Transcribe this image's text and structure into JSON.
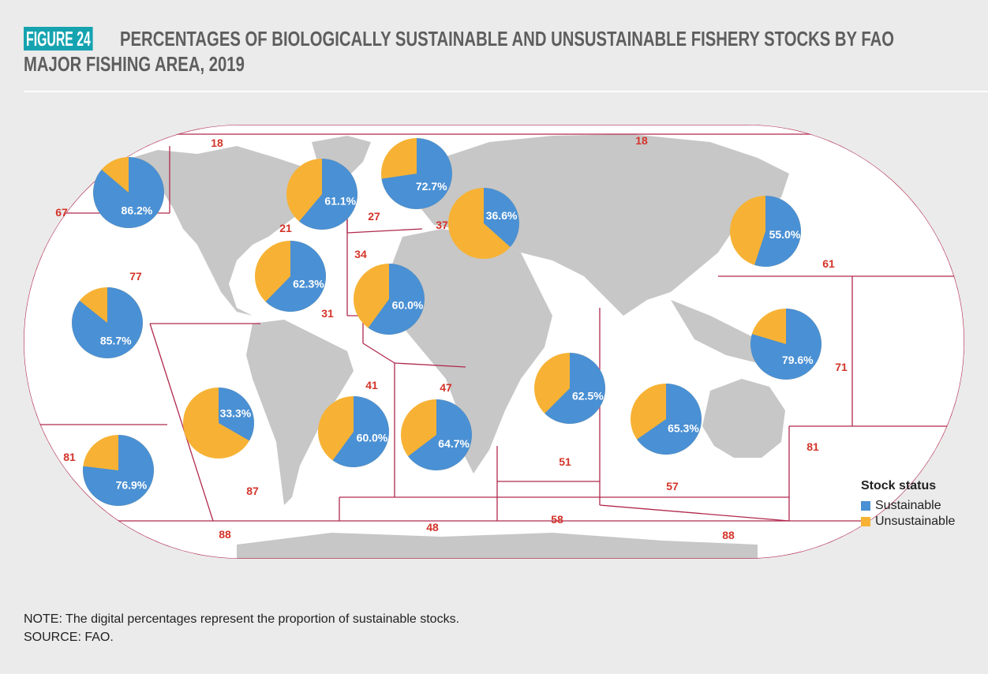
{
  "header": {
    "figure_label": "FIGURE 24",
    "title_line1": "PERCENTAGES OF BIOLOGICALLY SUSTAINABLE AND UNSUSTAINABLE FISHERY STOCKS BY FAO",
    "title_line2": "MAJOR FISHING AREA, 2019"
  },
  "colors": {
    "sustainable": "#4a90d4",
    "unsustainable": "#f7b235",
    "border": "#b0294d",
    "area_label": "#d4342a",
    "land": "#c7c7c7",
    "ocean": "#ffffff",
    "accent": "#15a3b0"
  },
  "area_labels": [
    "18",
    "18",
    "67",
    "21",
    "27",
    "37",
    "34",
    "77",
    "31",
    "61",
    "71",
    "41",
    "47",
    "51",
    "81",
    "87",
    "57",
    "81",
    "88",
    "48",
    "58",
    "88"
  ],
  "pies": [
    {
      "area": "67",
      "sustainable": 86.2,
      "label": "86.2%"
    },
    {
      "area": "21",
      "sustainable": 61.1,
      "label": "61.1%"
    },
    {
      "area": "27",
      "sustainable": 72.7,
      "label": "72.7%"
    },
    {
      "area": "37",
      "sustainable": 36.6,
      "label": "36.6%"
    },
    {
      "area": "61",
      "sustainable": 55.0,
      "label": "55.0%"
    },
    {
      "area": "31",
      "sustainable": 62.3,
      "label": "62.3%"
    },
    {
      "area": "34",
      "sustainable": 60.0,
      "label": "60.0%"
    },
    {
      "area": "77",
      "sustainable": 85.7,
      "label": "85.7%"
    },
    {
      "area": "71",
      "sustainable": 79.6,
      "label": "79.6%"
    },
    {
      "area": "51",
      "sustainable": 62.5,
      "label": "62.5%"
    },
    {
      "area": "57",
      "sustainable": 65.3,
      "label": "65.3%"
    },
    {
      "area": "87",
      "sustainable": 33.3,
      "label": "33.3%"
    },
    {
      "area": "41",
      "sustainable": 60.0,
      "label": "60.0%"
    },
    {
      "area": "47",
      "sustainable": 64.7,
      "label": "64.7%"
    },
    {
      "area": "81",
      "sustainable": 76.9,
      "label": "76.9%"
    }
  ],
  "legend": {
    "title": "Stock status",
    "sustainable_label": "Sustainable",
    "unsustainable_label": "Unsustainable"
  },
  "footer": {
    "note": "NOTE: The digital percentages represent the proportion of sustainable stocks.",
    "source": "SOURCE: FAO."
  }
}
